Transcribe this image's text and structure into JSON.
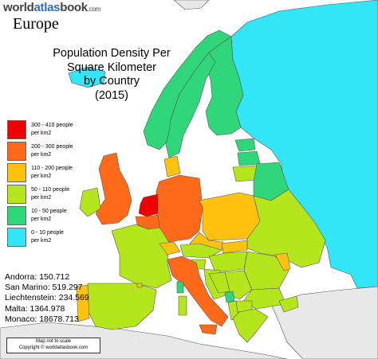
{
  "header": {
    "site_logo": {
      "part_world": "world",
      "part_atlas": "atlas",
      "part_book": "book",
      "part_com": ".com"
    },
    "region": "Europe"
  },
  "title": {
    "lines": [
      "Population Density Per",
      "Square Kilometer",
      "by Country",
      "(2015)"
    ]
  },
  "legend": {
    "items": [
      {
        "label": "300 - 410 people\nper km2",
        "color": "#ee0000"
      },
      {
        "label": "200 - 300 people\nper km2",
        "color": "#ff6a1a"
      },
      {
        "label": "110 - 200 people\nper km2",
        "color": "#ffc20e"
      },
      {
        "label": "50 - 110 people\nper km2",
        "color": "#b5e61d"
      },
      {
        "label": "10 - 50 people\nper km2",
        "color": "#2fd67a"
      },
      {
        "label": "0 - 10 people\nper km2",
        "color": "#33e6f6"
      }
    ]
  },
  "microstates": [
    {
      "name": "Andorra",
      "value": "150.712"
    },
    {
      "name": "San Marino",
      "value": "519.297"
    },
    {
      "name": "Liechtenstein",
      "value": "234.569"
    },
    {
      "name": "Malta",
      "value": "1364.978"
    },
    {
      "name": "Monaco",
      "value": "18678.713"
    }
  ],
  "footer": {
    "note": "Map not to scale",
    "copyright": "Copyright © worldatlasbook.com"
  },
  "colors": {
    "sea": "#ffffff",
    "outside": "#e8e8e8",
    "border": "#555555",
    "over_300": "#ee0000",
    "from_200_to_300": "#ff6a1a",
    "from_110_to_200": "#ffc20e",
    "from_50_to_110": "#b5e61d",
    "from_10_to_50": "#2fd67a",
    "under_10": "#33e6f6"
  }
}
